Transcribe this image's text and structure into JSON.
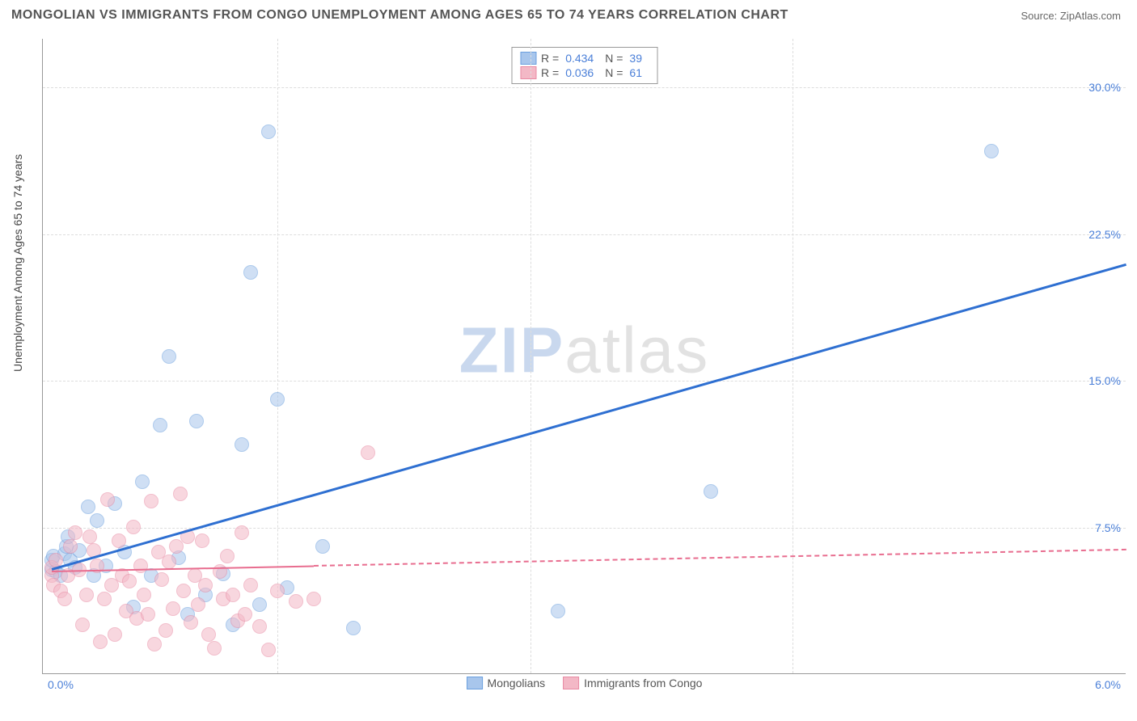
{
  "header": {
    "title": "MONGOLIAN VS IMMIGRANTS FROM CONGO UNEMPLOYMENT AMONG AGES 65 TO 74 YEARS CORRELATION CHART",
    "source": "Source: ZipAtlas.com"
  },
  "chart": {
    "type": "scatter",
    "ylabel": "Unemployment Among Ages 65 to 74 years",
    "xlim": [
      0,
      6.0
    ],
    "ylim": [
      0,
      32.5
    ],
    "x_origin_label": "0.0%",
    "x_max_label": "6.0%",
    "yticks": [
      {
        "v": 7.5,
        "label": "7.5%"
      },
      {
        "v": 15.0,
        "label": "15.0%"
      },
      {
        "v": 22.5,
        "label": "22.5%"
      },
      {
        "v": 30.0,
        "label": "30.0%"
      }
    ],
    "xticks_minor": [
      1.3,
      2.7,
      4.15
    ],
    "background_color": "#ffffff",
    "grid_color": "#dddddd",
    "axis_color": "#999999",
    "tick_label_color": "#4a7fd8",
    "point_radius": 9,
    "point_opacity": 0.55,
    "watermark": {
      "zip": "ZIP",
      "atlas": "atlas"
    },
    "series": [
      {
        "id": "mongolians",
        "label": "Mongolians",
        "color_fill": "#a8c6ec",
        "color_stroke": "#6b9fde",
        "R": "0.434",
        "N": "39",
        "trend": {
          "x1": 0.05,
          "y1": 5.4,
          "x2": 6.0,
          "y2": 21.0,
          "color": "#2e6fd1",
          "solid_until_x": 6.0,
          "width": 2.5
        },
        "points": [
          [
            0.05,
            5.3
          ],
          [
            0.05,
            5.8
          ],
          [
            0.06,
            6.0
          ],
          [
            0.07,
            5.2
          ],
          [
            0.1,
            5.0
          ],
          [
            0.12,
            6.1
          ],
          [
            0.13,
            6.5
          ],
          [
            0.14,
            7.0
          ],
          [
            0.15,
            5.8
          ],
          [
            0.18,
            5.4
          ],
          [
            0.2,
            6.3
          ],
          [
            0.25,
            8.5
          ],
          [
            0.28,
            5.0
          ],
          [
            0.3,
            7.8
          ],
          [
            0.35,
            5.5
          ],
          [
            0.4,
            8.7
          ],
          [
            0.45,
            6.2
          ],
          [
            0.5,
            3.4
          ],
          [
            0.55,
            9.8
          ],
          [
            0.6,
            5.0
          ],
          [
            0.65,
            12.7
          ],
          [
            0.7,
            16.2
          ],
          [
            0.75,
            5.9
          ],
          [
            0.8,
            3.0
          ],
          [
            0.85,
            12.9
          ],
          [
            0.9,
            4.0
          ],
          [
            1.0,
            5.1
          ],
          [
            1.05,
            2.5
          ],
          [
            1.1,
            11.7
          ],
          [
            1.15,
            20.5
          ],
          [
            1.2,
            3.5
          ],
          [
            1.25,
            27.7
          ],
          [
            1.3,
            14.0
          ],
          [
            1.35,
            4.4
          ],
          [
            1.55,
            6.5
          ],
          [
            1.72,
            2.3
          ],
          [
            2.85,
            3.2
          ],
          [
            3.7,
            9.3
          ],
          [
            5.25,
            26.7
          ]
        ]
      },
      {
        "id": "congo",
        "label": "Immigrants from Congo",
        "color_fill": "#f3b8c6",
        "color_stroke": "#e88aa3",
        "R": "0.036",
        "N": "61",
        "trend": {
          "x1": 0.05,
          "y1": 5.3,
          "x2": 6.0,
          "y2": 6.4,
          "color": "#e86d8f",
          "solid_until_x": 1.5,
          "width": 2
        },
        "points": [
          [
            0.05,
            5.0
          ],
          [
            0.05,
            5.4
          ],
          [
            0.06,
            4.5
          ],
          [
            0.07,
            5.8
          ],
          [
            0.1,
            4.2
          ],
          [
            0.12,
            3.8
          ],
          [
            0.14,
            5.0
          ],
          [
            0.15,
            6.5
          ],
          [
            0.18,
            7.2
          ],
          [
            0.2,
            5.3
          ],
          [
            0.22,
            2.5
          ],
          [
            0.24,
            4.0
          ],
          [
            0.26,
            7.0
          ],
          [
            0.28,
            6.3
          ],
          [
            0.3,
            5.5
          ],
          [
            0.32,
            1.6
          ],
          [
            0.34,
            3.8
          ],
          [
            0.36,
            8.9
          ],
          [
            0.38,
            4.5
          ],
          [
            0.4,
            2.0
          ],
          [
            0.42,
            6.8
          ],
          [
            0.44,
            5.0
          ],
          [
            0.46,
            3.2
          ],
          [
            0.48,
            4.7
          ],
          [
            0.5,
            7.5
          ],
          [
            0.52,
            2.8
          ],
          [
            0.54,
            5.5
          ],
          [
            0.56,
            4.0
          ],
          [
            0.58,
            3.0
          ],
          [
            0.6,
            8.8
          ],
          [
            0.62,
            1.5
          ],
          [
            0.64,
            6.2
          ],
          [
            0.66,
            4.8
          ],
          [
            0.68,
            2.2
          ],
          [
            0.7,
            5.7
          ],
          [
            0.72,
            3.3
          ],
          [
            0.74,
            6.5
          ],
          [
            0.76,
            9.2
          ],
          [
            0.78,
            4.2
          ],
          [
            0.8,
            7.0
          ],
          [
            0.82,
            2.6
          ],
          [
            0.84,
            5.0
          ],
          [
            0.86,
            3.5
          ],
          [
            0.88,
            6.8
          ],
          [
            0.9,
            4.5
          ],
          [
            0.92,
            2.0
          ],
          [
            0.95,
            1.3
          ],
          [
            0.98,
            5.2
          ],
          [
            1.0,
            3.8
          ],
          [
            1.02,
            6.0
          ],
          [
            1.05,
            4.0
          ],
          [
            1.08,
            2.7
          ],
          [
            1.1,
            7.2
          ],
          [
            1.12,
            3.0
          ],
          [
            1.15,
            4.5
          ],
          [
            1.2,
            2.4
          ],
          [
            1.25,
            1.2
          ],
          [
            1.3,
            4.2
          ],
          [
            1.4,
            3.7
          ],
          [
            1.5,
            3.8
          ],
          [
            1.8,
            11.3
          ]
        ]
      }
    ],
    "legend_labels": {
      "R": "R =",
      "N": "N ="
    }
  }
}
